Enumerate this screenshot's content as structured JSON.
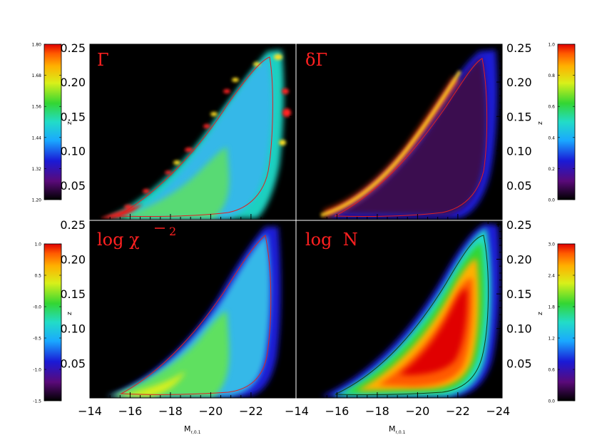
{
  "chart_data": {
    "type": "heatmap",
    "x_ticks": [
      "-14",
      "-16",
      "-18",
      "-20",
      "-22",
      "-24"
    ],
    "x_ticks_left_panels": [
      "-14",
      "-16",
      "-18",
      "-20",
      "-22"
    ],
    "y_ticks": [
      "0.05",
      "0.10",
      "0.15",
      "0.20",
      "0.25"
    ],
    "xlim": [
      -14,
      -24.2
    ],
    "ylim": [
      0.0,
      0.255
    ],
    "xlabel_left": "M",
    "xlabel_left_sub": "r,0.1",
    "xlabel_right": "M",
    "xlabel_right_sub": "r,0.1",
    "ylabel": "z",
    "panels": [
      {
        "id": "gamma",
        "label": "Γ",
        "colorbar_ticks": [
          "1.80",
          "1.68",
          "1.56",
          "1.44",
          "1.32",
          "1.20"
        ]
      },
      {
        "id": "dgamma",
        "label": "δΓ",
        "colorbar_ticks": [
          "1.0",
          "0.8",
          "0.6",
          "0.4",
          "0.2",
          "0.0"
        ]
      },
      {
        "id": "chi2",
        "label": "log χ",
        "label_sup": "2",
        "colorbar_ticks": [
          "1.0",
          "0.5",
          "-0.0",
          "-0.5",
          "-1.0",
          "-1.5"
        ]
      },
      {
        "id": "logn",
        "label": "log  N",
        "colorbar_ticks": [
          "3.0",
          "2.4",
          "1.8",
          "1.2",
          "0.6",
          "0.0"
        ]
      }
    ],
    "colormap": [
      "#000000",
      "#5a0a7a",
      "#1a1ad6",
      "#1aa8ff",
      "#22dcc8",
      "#33d633",
      "#d8f01a",
      "#ffb000",
      "#ff5a00",
      "#e00000"
    ]
  }
}
